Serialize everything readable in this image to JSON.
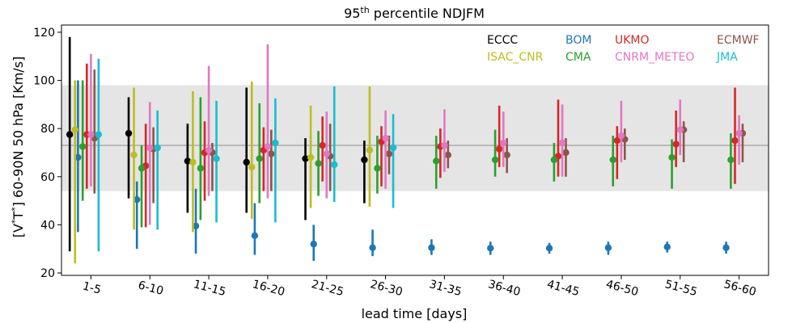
{
  "chart_data": {
    "type": "scatter",
    "title_main": "95",
    "title_sup": "th",
    "title_rest": " percentile NDJFM",
    "xlabel": "lead time [days]",
    "ylabel_prefix": "[V",
    "ylabel_sup1": "*",
    "ylabel_mid": "T",
    "ylabel_sup2": "*",
    "ylabel_suffix": "] 60-90N 50 hPa [Km/s]",
    "ylim": [
      19,
      123
    ],
    "yticks": [
      20,
      40,
      60,
      80,
      100,
      120
    ],
    "categories": [
      "1-5",
      "6-10",
      "11-15",
      "16-20",
      "21-25",
      "26-30",
      "31-35",
      "36-40",
      "41-45",
      "46-50",
      "51-55",
      "56-60"
    ],
    "reference_line": 73,
    "reference_band": [
      54,
      98
    ],
    "series": [
      {
        "name": "ECCC",
        "color": "#000000",
        "offset": -0.36,
        "points": [
          {
            "cat": 0,
            "y": 77.5,
            "lo": 29,
            "hi": 118
          },
          {
            "cat": 1,
            "y": 78,
            "lo": 51,
            "hi": 93
          },
          {
            "cat": 2,
            "y": 66.5,
            "lo": 45,
            "hi": 82
          },
          {
            "cat": 3,
            "y": 66,
            "lo": 45,
            "hi": 97
          },
          {
            "cat": 4,
            "y": 67.5,
            "lo": 42,
            "hi": 76
          },
          {
            "cat": 5,
            "y": 67,
            "lo": 49,
            "hi": 75
          }
        ]
      },
      {
        "name": "BOM",
        "color": "#1f77b4",
        "offset": -0.24,
        "points": [
          {
            "cat": 0,
            "y": 68,
            "lo": 37,
            "hi": 100
          },
          {
            "cat": 1,
            "y": 50.5,
            "lo": 30,
            "hi": 58
          },
          {
            "cat": 2,
            "y": 39.5,
            "lo": 28,
            "hi": 55
          },
          {
            "cat": 3,
            "y": 35.5,
            "lo": 27.5,
            "hi": 49
          },
          {
            "cat": 4,
            "y": 32,
            "lo": 25,
            "hi": 40
          },
          {
            "cat": 5,
            "y": 30.5,
            "lo": 27,
            "hi": 38
          },
          {
            "cat": 6,
            "y": 30.5,
            "lo": 27.5,
            "hi": 34
          },
          {
            "cat": 7,
            "y": 30.3,
            "lo": 27.5,
            "hi": 33
          },
          {
            "cat": 8,
            "y": 30.3,
            "lo": 28,
            "hi": 32.5
          },
          {
            "cat": 9,
            "y": 30.5,
            "lo": 27.5,
            "hi": 33
          },
          {
            "cat": 10,
            "y": 30.8,
            "lo": 28.5,
            "hi": 33
          },
          {
            "cat": 11,
            "y": 30.5,
            "lo": 28,
            "hi": 33
          }
        ]
      },
      {
        "name": "UKMO",
        "color": "#d62728",
        "offset": -0.12,
        "points": [
          {
            "cat": 0,
            "y": 77.5,
            "lo": 55,
            "hi": 107
          },
          {
            "cat": 1,
            "y": 64.5,
            "lo": 39,
            "hi": 82
          },
          {
            "cat": 2,
            "y": 70,
            "lo": 50,
            "hi": 83
          },
          {
            "cat": 3,
            "y": 71,
            "lo": 54,
            "hi": 80.5
          },
          {
            "cat": 4,
            "y": 73,
            "lo": 58,
            "hi": 85
          },
          {
            "cat": 5,
            "y": 74.5,
            "lo": 56,
            "hi": 81
          },
          {
            "cat": 6,
            "y": 72.5,
            "lo": 59.5,
            "hi": 80
          },
          {
            "cat": 7,
            "y": 71.5,
            "lo": 64,
            "hi": 89.5
          },
          {
            "cat": 8,
            "y": 68.5,
            "lo": 60,
            "hi": 92
          },
          {
            "cat": 9,
            "y": 75,
            "lo": 59,
            "hi": 81
          },
          {
            "cat": 10,
            "y": 73.5,
            "lo": 64,
            "hi": 87.5
          },
          {
            "cat": 11,
            "y": 75,
            "lo": 57,
            "hi": 97
          }
        ]
      },
      {
        "name": "ECMWF",
        "color": "#8c564b",
        "offset": 0.0,
        "points": [
          {
            "cat": 0,
            "y": 76,
            "lo": 53,
            "hi": 104.5
          },
          {
            "cat": 1,
            "y": 71.5,
            "lo": 49,
            "hi": 80.5
          },
          {
            "cat": 2,
            "y": 70,
            "lo": 54,
            "hi": 74
          },
          {
            "cat": 3,
            "y": 69.5,
            "lo": 54,
            "hi": 79.5
          },
          {
            "cat": 4,
            "y": 68.5,
            "lo": 54,
            "hi": 82
          },
          {
            "cat": 5,
            "y": 69.5,
            "lo": 61,
            "hi": 77
          },
          {
            "cat": 6,
            "y": 69,
            "lo": 63.5,
            "hi": 75
          },
          {
            "cat": 7,
            "y": 69,
            "lo": 61.5,
            "hi": 76
          },
          {
            "cat": 8,
            "y": 70,
            "lo": 60,
            "hi": 76
          },
          {
            "cat": 9,
            "y": 75.5,
            "lo": 67,
            "hi": 80
          },
          {
            "cat": 10,
            "y": 79.5,
            "lo": 66,
            "hi": 83
          },
          {
            "cat": 11,
            "y": 78,
            "lo": 66,
            "hi": 82
          }
        ]
      },
      {
        "name": "ISAC_CNR",
        "color": "#bcbd22",
        "offset": 0.0,
        "points": [
          {
            "cat": 0,
            "y": 79.5,
            "lo": 24,
            "hi": 100
          },
          {
            "cat": 1,
            "y": 69,
            "lo": 38,
            "hi": 97
          },
          {
            "cat": 2,
            "y": 66,
            "lo": 37,
            "hi": 95.5
          },
          {
            "cat": 3,
            "y": 64,
            "lo": 42.5,
            "hi": 99.5
          },
          {
            "cat": 4,
            "y": 68,
            "lo": 47,
            "hi": 89.5
          },
          {
            "cat": 5,
            "y": 71,
            "lo": 47.5,
            "hi": 97.5
          }
        ]
      },
      {
        "name": "CMA",
        "color": "#2ca02c",
        "offset": 0.0,
        "points": [
          {
            "cat": 0,
            "y": 72.5,
            "lo": 50,
            "hi": 100
          },
          {
            "cat": 1,
            "y": 63.5,
            "lo": 39,
            "hi": 73
          },
          {
            "cat": 2,
            "y": 63.5,
            "lo": 42,
            "hi": 93
          },
          {
            "cat": 3,
            "y": 67.5,
            "lo": 49,
            "hi": 90.5
          },
          {
            "cat": 4,
            "y": 65.5,
            "lo": 52,
            "hi": 79
          },
          {
            "cat": 5,
            "y": 63.5,
            "lo": 53,
            "hi": 77
          },
          {
            "cat": 6,
            "y": 66.5,
            "lo": 55,
            "hi": 77
          },
          {
            "cat": 7,
            "y": 67,
            "lo": 60,
            "hi": 79.5
          },
          {
            "cat": 8,
            "y": 67,
            "lo": 58,
            "hi": 74
          },
          {
            "cat": 9,
            "y": 67,
            "lo": 56,
            "hi": 77
          },
          {
            "cat": 10,
            "y": 68,
            "lo": 55,
            "hi": 75.5
          },
          {
            "cat": 11,
            "y": 67,
            "lo": 55,
            "hi": 78
          }
        ]
      },
      {
        "name": "CNRM_METEO",
        "color": "#e377c2",
        "offset": 0.0,
        "points": [
          {
            "cat": 0,
            "y": 77.5,
            "lo": 56,
            "hi": 111
          },
          {
            "cat": 1,
            "y": 72,
            "lo": 40,
            "hi": 91
          },
          {
            "cat": 2,
            "y": 71,
            "lo": 52,
            "hi": 106
          },
          {
            "cat": 3,
            "y": 72.5,
            "lo": 51,
            "hi": 115
          },
          {
            "cat": 4,
            "y": 69.5,
            "lo": 51,
            "hi": 87
          },
          {
            "cat": 5,
            "y": 76,
            "lo": 55,
            "hi": 87.5
          },
          {
            "cat": 6,
            "y": 73,
            "lo": 62,
            "hi": 88
          },
          {
            "cat": 7,
            "y": 74,
            "lo": 64,
            "hi": 87
          },
          {
            "cat": 8,
            "y": 74,
            "lo": 60,
            "hi": 90
          },
          {
            "cat": 9,
            "y": 77,
            "lo": 66,
            "hi": 91.5
          },
          {
            "cat": 10,
            "y": 79.5,
            "lo": 69,
            "hi": 92
          },
          {
            "cat": 11,
            "y": 78,
            "lo": 65,
            "hi": 85.5
          }
        ]
      },
      {
        "name": "JMA",
        "color": "#17becf",
        "offset": 0.0,
        "points": [
          {
            "cat": 0,
            "y": 77.5,
            "lo": 29,
            "hi": 109
          },
          {
            "cat": 1,
            "y": 72,
            "lo": 38,
            "hi": 87.5
          },
          {
            "cat": 2,
            "y": 67.5,
            "lo": 41,
            "hi": 91.5
          },
          {
            "cat": 3,
            "y": 74,
            "lo": 41,
            "hi": 92.5
          },
          {
            "cat": 4,
            "y": 65,
            "lo": 49.5,
            "hi": 97.5
          },
          {
            "cat": 5,
            "y": 72,
            "lo": 47,
            "hi": 86
          }
        ]
      }
    ],
    "legend": {
      "placement": "top-right",
      "rows": [
        [
          {
            "label": "ECCC",
            "color": "#000000"
          },
          {
            "label": "BOM",
            "color": "#1f77b4"
          },
          {
            "label": "UKMO",
            "color": "#d62728"
          },
          {
            "label": "ECMWF",
            "color": "#8c564b"
          }
        ],
        [
          {
            "label": "ISAC_CNR",
            "color": "#bcbd22"
          },
          {
            "label": "CMA",
            "color": "#2ca02c"
          },
          {
            "label": "CNRM_METEO",
            "color": "#e377c2"
          },
          {
            "label": "JMA",
            "color": "#17becf"
          }
        ]
      ]
    },
    "grid": false
  }
}
